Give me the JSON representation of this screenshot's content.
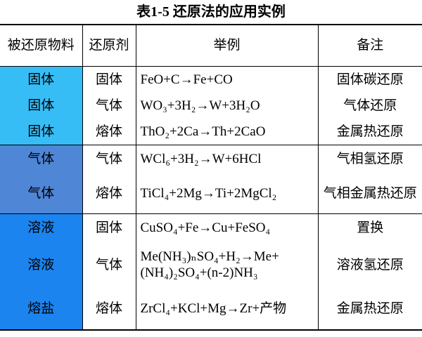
{
  "title": "表1-5 还原法的应用实例",
  "table": {
    "header": [
      "被还原物料",
      "还原剂",
      "举例",
      "备注"
    ],
    "rows": [
      [
        "固体",
        "固体",
        "FeO+C→Fe+CO",
        "固体碳还原"
      ],
      [
        "固体",
        "气体",
        "WO₃+3H₂→W+3H₂O",
        "气体还原"
      ],
      [
        "固体",
        "熔体",
        "ThO₂+2Ca→Th+2CaO",
        "金属热还原"
      ],
      [
        "气体",
        "气体",
        "WCl₆+3H₂→W+6HCl",
        "气相氢还原"
      ],
      [
        "气体",
        "熔体",
        "TiCl₄+2Mg→Ti+2MgCl₂",
        "气相金属热还原"
      ],
      [
        "溶液",
        "固体",
        "CuSO₄+Fe→Cu+FeSO₄",
        "置换"
      ],
      [
        "溶液",
        "气体",
        "Me(NH₃)ₙSO₄+H₂→Me+(NH₄)₂SO₄+(n-2)NH₃",
        "溶液氢还原"
      ],
      [
        "熔盐",
        "熔体",
        "ZrCl₄+KCl+Mg→Zr+产物",
        "金属热还原"
      ]
    ]
  }
}
